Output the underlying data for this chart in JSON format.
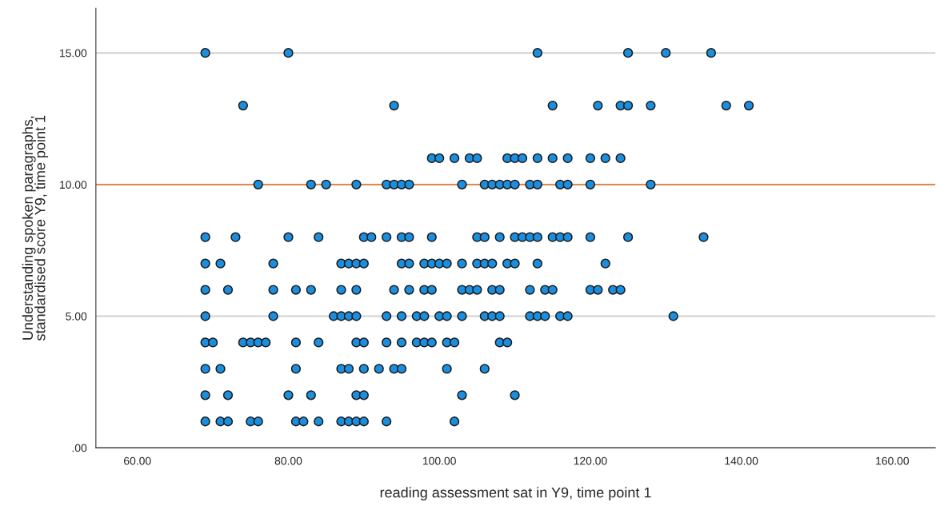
{
  "chart_data": {
    "type": "scatter",
    "xlabel": "reading assessment sat in Y9, time point 1",
    "ylabel": "Understanding spoken paragraphs,\nstandardised score Y9, time point 1",
    "series": [
      {
        "color": "#1a8fe0",
        "x": [
          69,
          80,
          113,
          125,
          130,
          136,
          74,
          94,
          115,
          121,
          124,
          125,
          128,
          138,
          141,
          99,
          100,
          102,
          104,
          105,
          109,
          110,
          111,
          113,
          115,
          117,
          120,
          122,
          124,
          76,
          83,
          85,
          89,
          93,
          94,
          95,
          96,
          103,
          106,
          107,
          108,
          109,
          110,
          112,
          113,
          116,
          117,
          120,
          128,
          69,
          73,
          80,
          84,
          90,
          91,
          93,
          95,
          96,
          99,
          105,
          106,
          108,
          110,
          111,
          112,
          113,
          115,
          116,
          117,
          120,
          125,
          135,
          69,
          71,
          78,
          87,
          88,
          89,
          90,
          95,
          96,
          98,
          99,
          100,
          101,
          103,
          105,
          106,
          107,
          109,
          110,
          113,
          122,
          69,
          72,
          78,
          81,
          83,
          87,
          89,
          94,
          96,
          98,
          99,
          103,
          104,
          105,
          107,
          108,
          112,
          114,
          115,
          120,
          121,
          123,
          124,
          69,
          78,
          86,
          87,
          88,
          89,
          93,
          95,
          97,
          98,
          100,
          101,
          103,
          106,
          107,
          108,
          112,
          113,
          114,
          116,
          117,
          131,
          69,
          70,
          74,
          75,
          76,
          77,
          81,
          84,
          89,
          90,
          93,
          95,
          97,
          98,
          99,
          101,
          102,
          108,
          109,
          69,
          71,
          81,
          87,
          88,
          90,
          92,
          94,
          95,
          101,
          106,
          69,
          72,
          80,
          83,
          89,
          90,
          103,
          110,
          69,
          71,
          72,
          75,
          76,
          81,
          82,
          84,
          87,
          88,
          89,
          90,
          93,
          102
        ],
        "values": [
          15,
          15,
          15,
          15,
          15,
          15,
          13,
          13,
          13,
          13,
          13,
          13,
          13,
          13,
          13,
          11,
          11,
          11,
          11,
          11,
          11,
          11,
          11,
          11,
          11,
          11,
          11,
          11,
          11,
          10,
          10,
          10,
          10,
          10,
          10,
          10,
          10,
          10,
          10,
          10,
          10,
          10,
          10,
          10,
          10,
          10,
          10,
          10,
          10,
          8,
          8,
          8,
          8,
          8,
          8,
          8,
          8,
          8,
          8,
          8,
          8,
          8,
          8,
          8,
          8,
          8,
          8,
          8,
          8,
          8,
          8,
          8,
          7,
          7,
          7,
          7,
          7,
          7,
          7,
          7,
          7,
          7,
          7,
          7,
          7,
          7,
          7,
          7,
          7,
          7,
          7,
          7,
          7,
          6,
          6,
          6,
          6,
          6,
          6,
          6,
          6,
          6,
          6,
          6,
          6,
          6,
          6,
          6,
          6,
          6,
          6,
          6,
          6,
          6,
          6,
          6,
          5,
          5,
          5,
          5,
          5,
          5,
          5,
          5,
          5,
          5,
          5,
          5,
          5,
          5,
          5,
          5,
          5,
          5,
          5,
          5,
          5,
          5,
          4,
          4,
          4,
          4,
          4,
          4,
          4,
          4,
          4,
          4,
          4,
          4,
          4,
          4,
          4,
          4,
          4,
          4,
          4,
          3,
          3,
          3,
          3,
          3,
          3,
          3,
          3,
          3,
          3,
          3,
          2,
          2,
          2,
          2,
          2,
          2,
          2,
          2,
          1,
          1,
          1,
          1,
          1,
          1,
          1,
          1,
          1,
          1,
          1,
          1,
          1,
          1
        ]
      }
    ],
    "marker": "circle",
    "xlim": [
      54.5,
      165.7
    ],
    "xticks": [
      {
        "value": 60,
        "label": "60.00"
      },
      {
        "value": 80,
        "label": "80.00"
      },
      {
        "value": 100,
        "label": "100.00"
      },
      {
        "value": 120,
        "label": "120.00"
      },
      {
        "value": 140,
        "label": "140.00"
      },
      {
        "value": 160,
        "label": "160.00"
      }
    ],
    "ylim": [
      0,
      16.7
    ],
    "yticks": [
      {
        "value": 0,
        "label": ".00"
      },
      {
        "value": 5,
        "label": "5.00"
      },
      {
        "value": 10,
        "label": "10.00"
      },
      {
        "value": 15,
        "label": "15.00"
      }
    ],
    "grid": "y",
    "ref_lines": [
      {
        "axis": "y",
        "value": 10,
        "color": "#e8823a"
      }
    ]
  }
}
